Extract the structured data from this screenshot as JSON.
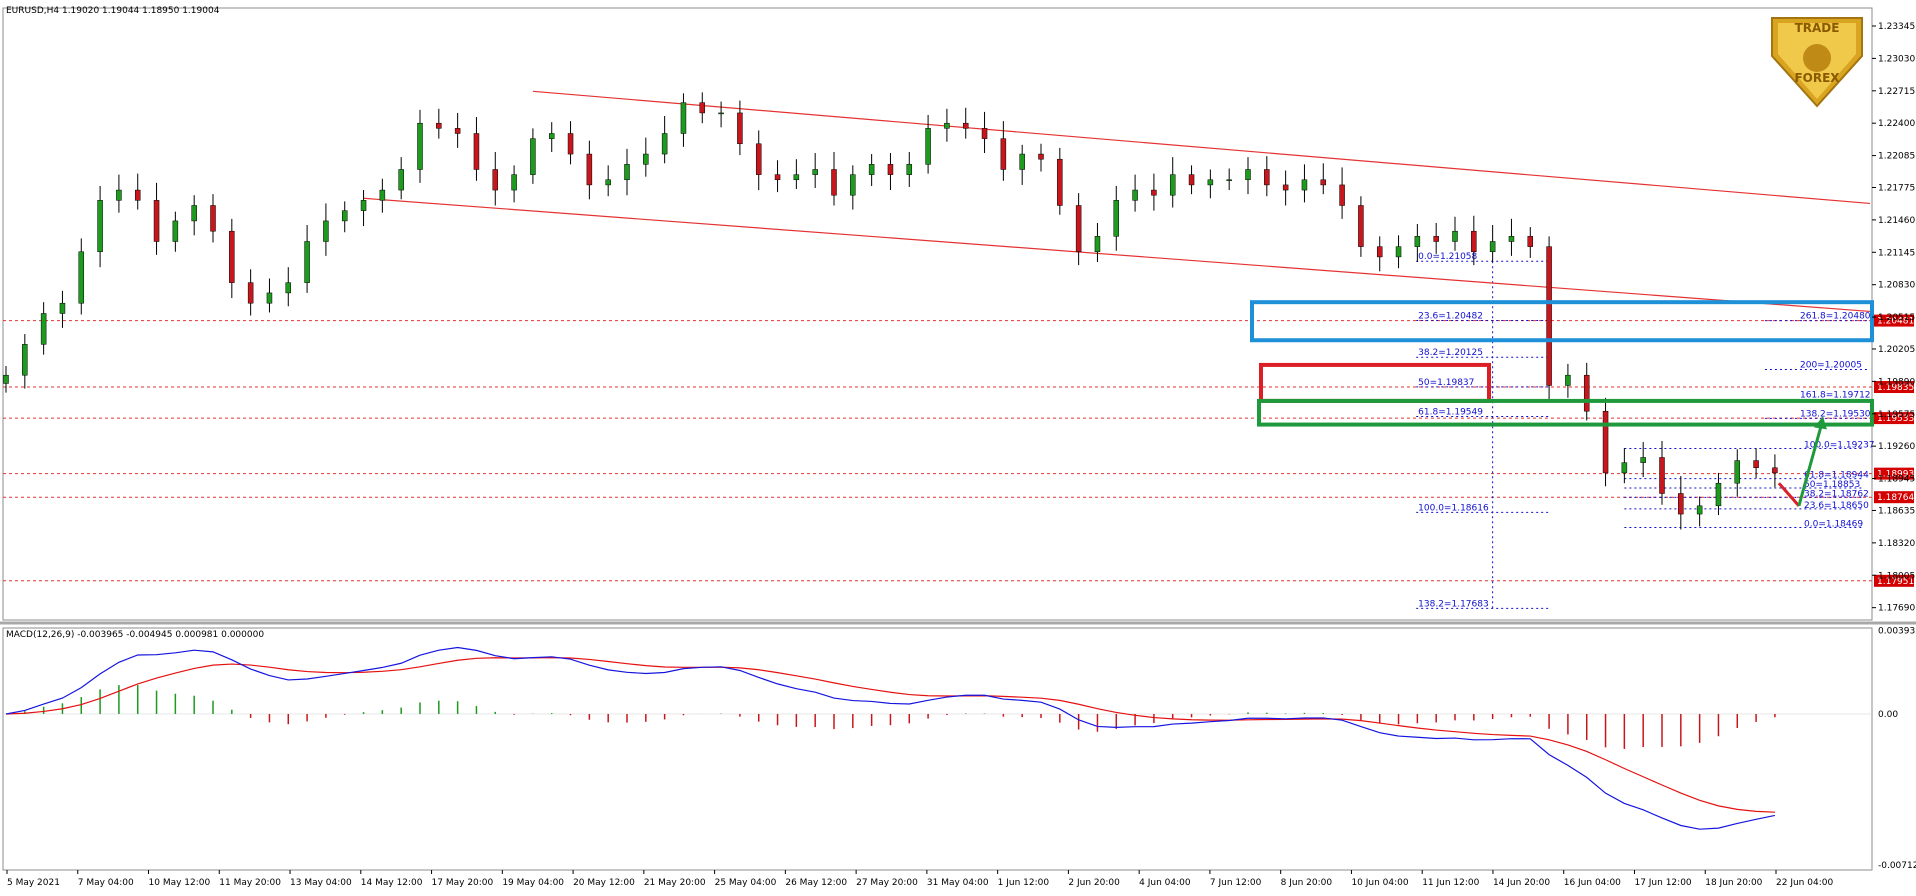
{
  "colors": {
    "bull": "#1e9a1e",
    "bear": "#c8161d",
    "channel": "#e53232",
    "level": "#e53232",
    "fib": "#1010d0",
    "macd_line": "#1515e0",
    "signal_line": "#e51010",
    "box_blue": "#1e90d8",
    "box_red": "#dc1e26",
    "box_green": "#1e9a3c",
    "badge": "#d40000",
    "logo_gold": "#d9a521"
  },
  "chart_data": {
    "type": "candlestick",
    "header": "EURUSD,H4  1.19020 1.19044 1.18950 1.19004",
    "price_axis": {
      "range": [
        1.1757,
        1.2352
      ],
      "ticks": [
        "1.23345",
        "1.23030",
        "1.22715",
        "1.22400",
        "1.22085",
        "1.21775",
        "1.21460",
        "1.21145",
        "1.20830",
        "1.20515",
        "1.20205",
        "1.19890",
        "1.19575",
        "1.19260",
        "1.18945",
        "1.18635",
        "1.18320",
        "1.18005",
        "1.17690"
      ]
    },
    "time_axis": {
      "ticks": [
        "5 May 2021",
        "7 May 04:00",
        "10 May 12:00",
        "11 May 20:00",
        "13 May 04:00",
        "14 May 12:00",
        "17 May 20:00",
        "19 May 04:00",
        "20 May 12:00",
        "21 May 20:00",
        "25 May 04:00",
        "26 May 12:00",
        "27 May 20:00",
        "31 May 04:00",
        "1 Jun 12:00",
        "2 Jun 20:00",
        "4 Jun 04:00",
        "7 Jun 12:00",
        "8 Jun 20:00",
        "10 Jun 04:00",
        "11 Jun 12:00",
        "14 Jun 20:00",
        "16 Jun 04:00",
        "17 Jun 12:00",
        "18 Jun 20:00",
        "22 Jun 04:00"
      ]
    },
    "close_path": [
      1.1995,
      1.2025,
      1.2055,
      1.2065,
      1.2115,
      1.2165,
      1.2175,
      1.2165,
      1.2125,
      1.2145,
      1.216,
      1.2135,
      1.2085,
      1.2065,
      1.2075,
      1.2085,
      1.2125,
      1.2145,
      1.2155,
      1.2165,
      1.2175,
      1.2195,
      1.224,
      1.2235,
      1.223,
      1.2195,
      1.2175,
      1.219,
      1.2225,
      1.223,
      1.221,
      1.218,
      1.2185,
      1.22,
      1.221,
      1.223,
      1.226,
      1.225,
      1.225,
      1.222,
      1.219,
      1.2185,
      1.219,
      1.2195,
      1.217,
      1.219,
      1.22,
      1.219,
      1.22,
      1.2235,
      1.224,
      1.2235,
      1.2225,
      1.2195,
      1.221,
      1.2205,
      1.216,
      1.2115,
      1.213,
      1.2165,
      1.2175,
      1.217,
      1.219,
      1.218,
      1.2185,
      1.2185,
      1.2195,
      1.218,
      1.2175,
      1.2185,
      1.218,
      1.216,
      1.212,
      1.211,
      1.212,
      1.213,
      1.2125,
      1.2135,
      1.2115,
      1.2125,
      1.213,
      1.212,
      1.1985,
      1.1995,
      1.196,
      1.19,
      1.191,
      1.1915,
      1.188,
      1.186,
      1.1868,
      1.189,
      1.1912,
      1.1905,
      1.19
    ],
    "channel_upper": {
      "from": [
        1.2271,
        28
      ],
      "to": [
        1.2162,
        100
      ]
    },
    "channel_lower": {
      "from": [
        1.2167,
        19
      ],
      "to": [
        1.2057,
        100
      ]
    },
    "levels": [
      {
        "price": 1.20481,
        "badge": "1.20481"
      },
      {
        "price": 1.19835,
        "badge": "1.19835"
      },
      {
        "price": 1.19533,
        "badge": "1.19533"
      },
      {
        "price": 1.18993,
        "badge": "1.18993"
      },
      {
        "price": 1.18764,
        "badge": "1.18764"
      },
      {
        "price": 1.17951,
        "badge": "1.17951"
      }
    ],
    "fib_left": [
      {
        "label": "0.0=1.21058",
        "price": 1.21058
      },
      {
        "label": "23.6=1.20482",
        "price": 1.20482
      },
      {
        "label": "38.2=1.20125",
        "price": 1.20125
      },
      {
        "label": "50=1.19837",
        "price": 1.19837
      },
      {
        "label": "61.8=1.19549",
        "price": 1.19549
      },
      {
        "label": "100.0=1.18616",
        "price": 1.18616
      },
      {
        "label": "138.2=1.17683",
        "price": 1.17683
      }
    ],
    "fib_right_ext": [
      {
        "label": "261.8=1.20480",
        "price": 1.2048
      },
      {
        "label": "200=1.20005",
        "price": 1.20005
      },
      {
        "label": "161.8=1.19712",
        "price": 1.19712
      },
      {
        "label": "138.2=1.19530",
        "price": 1.1953
      }
    ],
    "fib_right_ret": [
      {
        "label": "100.0=1.19237",
        "price": 1.19237
      },
      {
        "label": "61.8=1.18944",
        "price": 1.18944
      },
      {
        "label": "50=1.18853",
        "price": 1.18853
      },
      {
        "label": "38.2=1.18762",
        "price": 1.18762
      },
      {
        "label": "23.6=1.18650",
        "price": 1.1865
      },
      {
        "label": "0.0=1.18469",
        "price": 1.18469
      }
    ],
    "macd": {
      "header": "MACD(12,26,9) -0.003965 -0.004945 0.000981 0.000000",
      "range": [
        -0.00735,
        0.00405
      ],
      "ticks": [
        "0.003932",
        "0.00",
        "-0.007124"
      ]
    }
  }
}
